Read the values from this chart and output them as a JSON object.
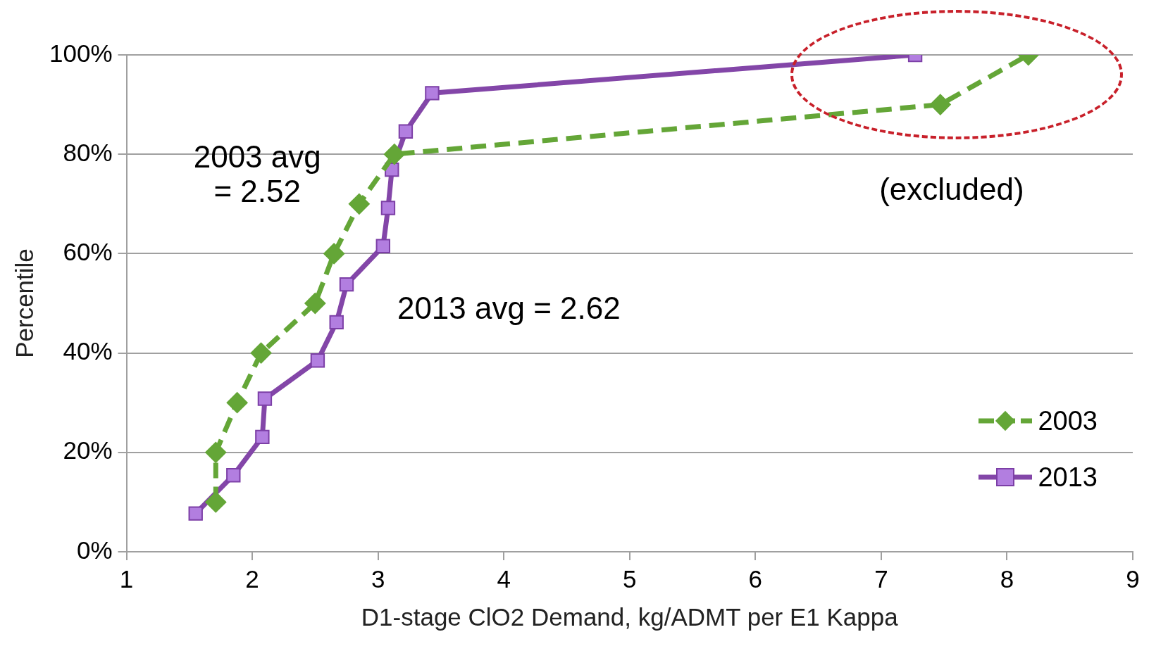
{
  "chart_data": {
    "type": "line",
    "xlabel": "D1-stage ClO2 Demand, kg/ADMT per E1 Kappa",
    "ylabel": "Percentile",
    "xlim": [
      1,
      9
    ],
    "xticks": [
      1,
      2,
      3,
      4,
      5,
      6,
      7,
      8,
      9
    ],
    "ylim": [
      0,
      100
    ],
    "yticks": [
      {
        "value": 0,
        "label": "0%"
      },
      {
        "value": 20,
        "label": "20%"
      },
      {
        "value": 40,
        "label": "40%"
      },
      {
        "value": 60,
        "label": "60%"
      },
      {
        "value": 80,
        "label": "80%"
      },
      {
        "value": 100,
        "label": "100%"
      }
    ],
    "grid": "y",
    "legend": "bottom right",
    "annotations": [
      "2003 avg\n= 2.52",
      "2013 avg = 2.62",
      "(excluded)"
    ],
    "series": [
      {
        "name": "2003",
        "color": "#64a637",
        "marker": "diamond",
        "line_style": "dashed",
        "x": [
          1.71,
          1.71,
          1.88,
          2.07,
          2.5,
          2.65,
          2.85,
          3.13,
          7.47,
          8.17
        ],
        "values": [
          10,
          20,
          30,
          40,
          50,
          60,
          70,
          80,
          90,
          100
        ]
      },
      {
        "name": "2013",
        "color": "#8346a8",
        "marker": "square",
        "line_style": "solid",
        "x": [
          1.55,
          1.85,
          2.08,
          2.1,
          2.52,
          2.67,
          2.75,
          3.04,
          3.08,
          3.11,
          3.22,
          3.43,
          7.27
        ],
        "values": [
          7.7,
          15.4,
          23.1,
          30.8,
          38.5,
          46.2,
          53.8,
          61.5,
          69.2,
          76.9,
          84.6,
          92.3,
          100
        ]
      }
    ]
  }
}
